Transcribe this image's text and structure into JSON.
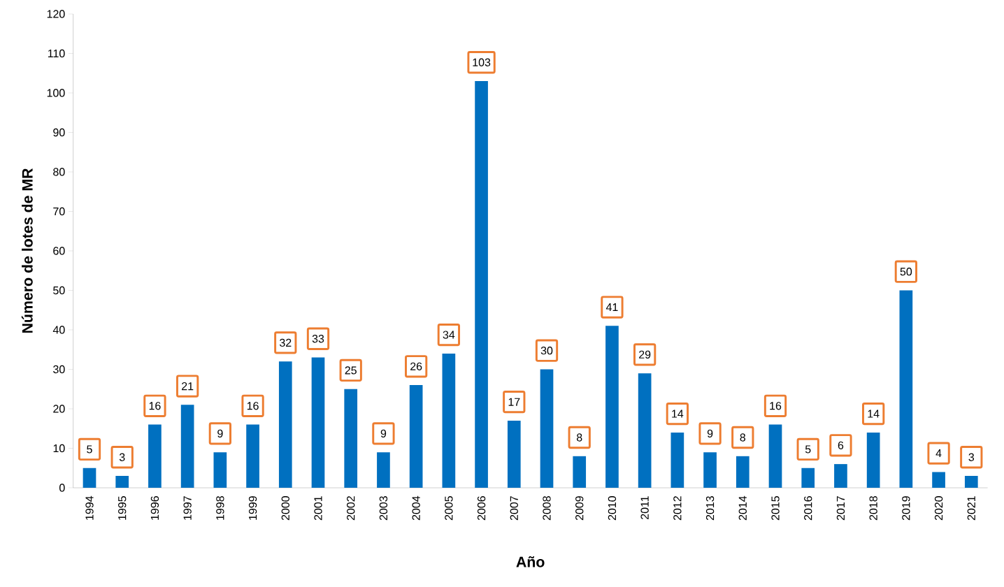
{
  "chart_data": {
    "type": "bar",
    "xlabel": "Año",
    "ylabel": "Número de lotes de MR",
    "categories": [
      "1994",
      "1995",
      "1996",
      "1997",
      "1998",
      "1999",
      "2000",
      "2001",
      "2002",
      "2003",
      "2004",
      "2005",
      "2006",
      "2007",
      "2008",
      "2009",
      "2010",
      "2011",
      "2012",
      "2013",
      "2014",
      "2015",
      "2016",
      "2017",
      "2018",
      "2019",
      "2020",
      "2021"
    ],
    "values": [
      5,
      3,
      16,
      21,
      9,
      16,
      32,
      33,
      25,
      9,
      26,
      34,
      103,
      17,
      30,
      8,
      41,
      29,
      14,
      9,
      8,
      16,
      5,
      6,
      14,
      50,
      4,
      3
    ],
    "color": "#0070c0",
    "data_labels": true,
    "ylim": [
      0,
      120
    ],
    "yticks": [
      0,
      10,
      20,
      30,
      40,
      50,
      60,
      70,
      80,
      90,
      100,
      110,
      120
    ]
  }
}
